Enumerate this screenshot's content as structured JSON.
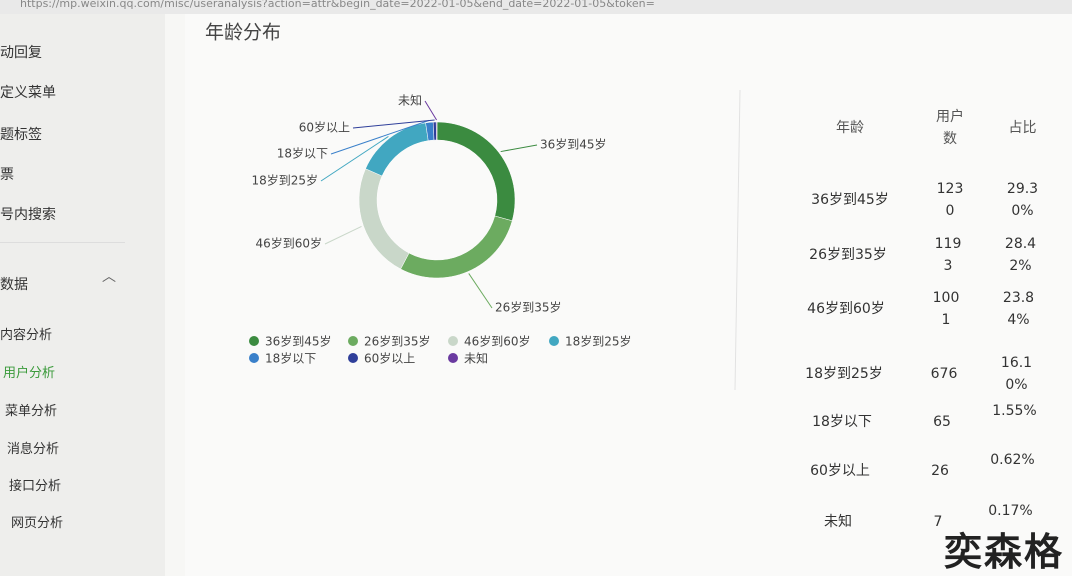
{
  "address_bar": "https://mp.weixin.qq.com/misc/useranalysis?action=attr&begin_date=2022-01-05&end_date=2022-01-05&token=",
  "sidebar": [
    "动回复",
    "定义菜单",
    "题标签",
    "票",
    "号内搜索",
    "数据",
    "内容分析",
    "用户分析",
    "菜单分析",
    "消息分析",
    "接口分析",
    "网页分析"
  ],
  "chart_data": {
    "type": "donut",
    "title": "年龄分布",
    "categories": [
      "36岁到45岁",
      "26岁到35岁",
      "46岁到60岁",
      "18岁到25岁",
      "18岁以下",
      "60岁以上",
      "未知"
    ],
    "values": [
      1230,
      1193,
      1001,
      676,
      65,
      26,
      7
    ],
    "colors": [
      "#3b8b40",
      "#6cab60",
      "#c9d7c9",
      "#41a7c1",
      "#3a80ca",
      "#2f3f9a",
      "#6a3aa0"
    ],
    "legend": "bottom"
  },
  "table": {
    "headers": [
      "年龄",
      "用户数",
      "占比"
    ],
    "rows": [
      [
        "36岁到45岁",
        "1230",
        "29.30%"
      ],
      [
        "26岁到35岁",
        "1193",
        "28.42%"
      ],
      [
        "46岁到60岁",
        "1001",
        "23.84%"
      ],
      [
        "18岁到25岁",
        "676",
        "16.10%"
      ],
      [
        "18岁以下",
        "65",
        "1.55%"
      ],
      [
        "60岁以上",
        "26",
        "0.62%"
      ],
      [
        "未知",
        "7",
        "0.17%"
      ]
    ]
  },
  "watermark": "奕森格"
}
